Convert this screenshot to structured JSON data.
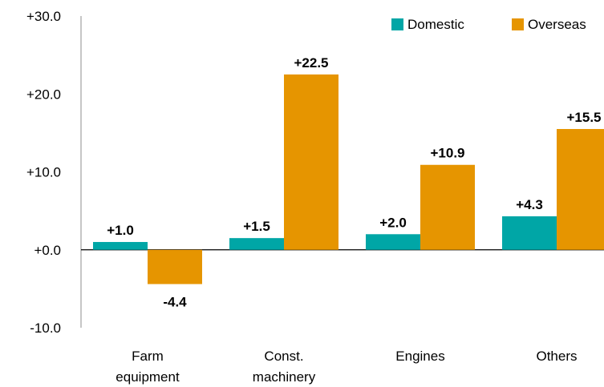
{
  "chart_data": {
    "type": "bar",
    "categories": [
      [
        "Farm",
        "equipment"
      ],
      [
        "Const.",
        "machinery"
      ],
      [
        "Engines"
      ],
      [
        "Others"
      ]
    ],
    "series": [
      {
        "name": "Domestic",
        "color": "#00A6A6",
        "values": [
          1.0,
          1.5,
          2.0,
          4.3
        ],
        "labels": [
          "+1.0",
          "+1.5",
          "+2.0",
          "+4.3"
        ]
      },
      {
        "name": "Overseas",
        "color": "#E69500",
        "values": [
          -4.4,
          22.5,
          10.9,
          15.5
        ],
        "labels": [
          "-4.4",
          "+22.5",
          "+10.9",
          "+15.5"
        ]
      }
    ],
    "ylim": [
      -10,
      30
    ],
    "yticks": [
      -10,
      0,
      10,
      20,
      30
    ],
    "ytick_labels": [
      "-10.0",
      "+0.0",
      "+10.0",
      "+20.0",
      "+30.0"
    ],
    "grid": false,
    "legend_position": "top-right"
  }
}
